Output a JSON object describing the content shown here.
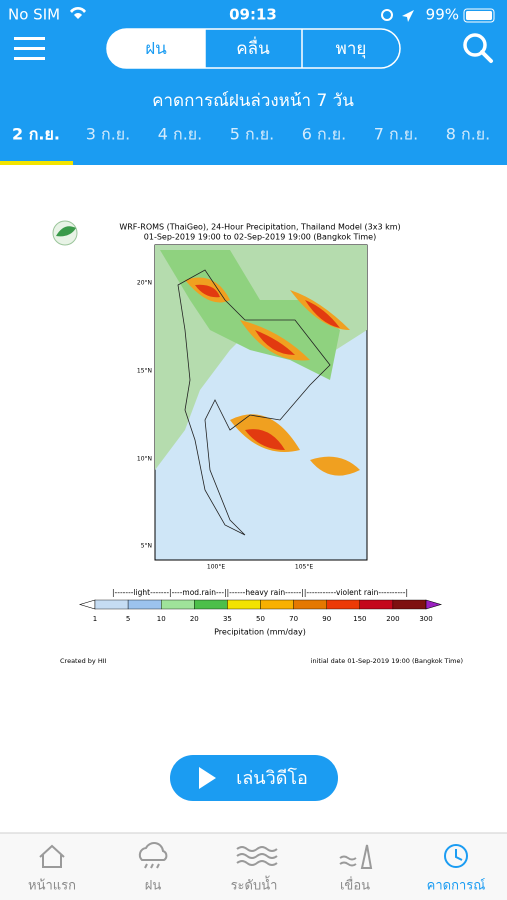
{
  "status_bar": {
    "carrier": "No SIM",
    "time": "09:13",
    "battery": "99%"
  },
  "header": {
    "segments": [
      "ฝน",
      "คลื่น",
      "พายุ"
    ],
    "title": "คาดการณ์ฝนล่วงหน้า 7 วัน",
    "dates": [
      "2 ก.ย.",
      "3 ก.ย.",
      "4 ก.ย.",
      "5 ก.ย.",
      "6 ก.ย.",
      "7 ก.ย.",
      "8 ก.ย."
    ]
  },
  "forecast_image": {
    "title": "WRF-ROMS (ThaiGeo), 24-Hour Precipitation, Thailand Model (3x3 km)",
    "subtitle": "01-Sep-2019 19:00 to 02-Sep-2019 19:00 (Bangkok Time)",
    "lat_labels": [
      "20°N",
      "15°N",
      "10°N",
      "5°N"
    ],
    "lon_labels": [
      "100°E",
      "105°E"
    ],
    "colorbar": {
      "categories": "|-------light-------|----mod.rain---||------heavy rain------||-----------violent rain----------|",
      "ticks": [
        "1",
        "5",
        "10",
        "20",
        "35",
        "50",
        "70",
        "90",
        "150",
        "200",
        "300"
      ],
      "colors": [
        "#c5dcf3",
        "#9cc3ee",
        "#9fe39a",
        "#4cbf4a",
        "#f2e200",
        "#f8b000",
        "#e57800",
        "#ec3a06",
        "#c4081c",
        "#7e1010"
      ],
      "over_color": "#9a20c0",
      "label": "Precipitation (mm/day)"
    },
    "credit": "Created by HII",
    "initial_date": "initial date 01-Sep-2019 19:00 (Bangkok Time)"
  },
  "play_button": "เล่นวิดีโอ",
  "tab_bar": [
    "หน้าแรก",
    "ฝน",
    "ระดับน้ำ",
    "เขื่อน",
    "คาดการณ์"
  ]
}
